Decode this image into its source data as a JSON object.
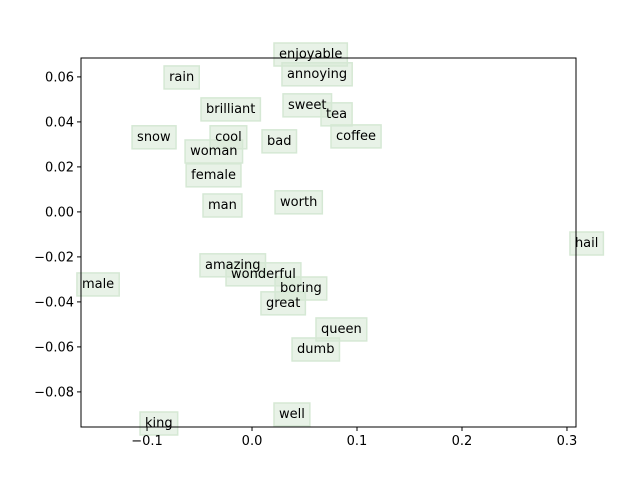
{
  "chart_data": {
    "type": "scatter",
    "labels": [
      "enjoyable",
      "rain",
      "annoying",
      "brilliant",
      "sweet",
      "tea",
      "snow",
      "cool",
      "bad",
      "coffee",
      "woman",
      "female",
      "man",
      "worth",
      "hail",
      "amazing",
      "wonderful",
      "male",
      "boring",
      "great",
      "queen",
      "dumb",
      "well",
      "king"
    ],
    "x": [
      0.0257,
      -0.079,
      0.0333,
      -0.0438,
      0.0343,
      0.0705,
      -0.1095,
      -0.0352,
      0.0143,
      0.08,
      -0.059,
      -0.058,
      -0.0419,
      0.0267,
      0.3076,
      -0.0448,
      -0.02,
      -0.162,
      0.0267,
      0.0133,
      0.0657,
      0.0429,
      0.0257,
      -0.1019
    ],
    "values": [
      0.0684,
      0.0582,
      0.0596,
      0.044,
      0.0458,
      0.0418,
      0.0316,
      0.0316,
      0.0298,
      0.032,
      0.0253,
      0.0147,
      0.0013,
      0.0027,
      -0.0156,
      -0.0253,
      -0.0293,
      -0.0338,
      -0.0356,
      -0.0422,
      -0.0538,
      -0.0627,
      -0.0916,
      -0.0956
    ],
    "color": "#d5e8d4",
    "xlim": [
      -0.1629,
      0.3086
    ],
    "ylim": [
      -0.0956,
      0.0684
    ],
    "xticks": [
      {
        "value": -0.1,
        "label": "−0.1"
      },
      {
        "value": 0.0,
        "label": "0.0"
      },
      0.1,
      0.2,
      0.3
    ],
    "yticks": [
      {
        "value": -0.08,
        "label": "−0.08"
      },
      {
        "value": -0.06,
        "label": "−0.06"
      },
      {
        "value": -0.04,
        "label": "−0.04"
      },
      {
        "value": -0.02,
        "label": "−0.02"
      },
      {
        "value": 0.0,
        "label": "0.00"
      },
      0.02,
      0.04,
      0.06
    ],
    "grid": false
  }
}
